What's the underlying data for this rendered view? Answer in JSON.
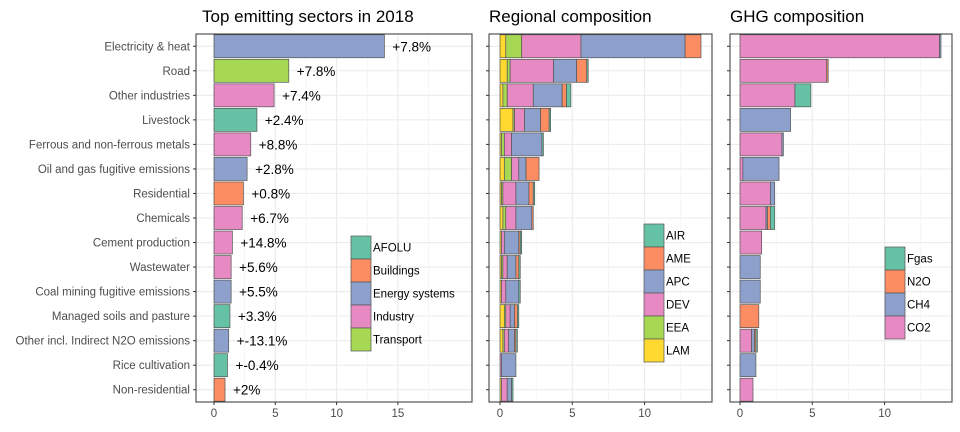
{
  "colors": {
    "AFOLU": "#66c2a5",
    "Buildings": "#fc8d62",
    "Energy systems": "#8da0cb",
    "Industry": "#e78ac3",
    "Transport": "#a6d854",
    "AIR": "#66c2a5",
    "AME": "#fc8d62",
    "APC": "#8da0cb",
    "DEV": "#e78ac3",
    "EEA": "#a6d854",
    "LAM": "#ffd92f",
    "Fgas": "#66c2a5",
    "N2O": "#fc8d62",
    "CH4": "#8da0cb",
    "CO2": "#e78ac3"
  },
  "chart_data": [
    {
      "type": "bar",
      "orientation": "horizontal",
      "title": "Top emitting sectors in 2018",
      "categories": [
        "Electricity & heat",
        "Road",
        "Other industries",
        "Livestock",
        "Ferrous and non-ferrous metals",
        "Oil and gas fugitive emissions",
        "Residential",
        "Chemicals",
        "Cement production",
        "Wastewater",
        "Coal mining fugitive emissions",
        "Managed soils and pasture",
        "Other incl. Indirect N2O emissions",
        "Rice cultivation",
        "Non-residential"
      ],
      "values": [
        13.9,
        6.1,
        4.9,
        3.5,
        3.0,
        2.7,
        2.4,
        2.3,
        1.5,
        1.4,
        1.4,
        1.3,
        1.2,
        1.1,
        0.9
      ],
      "sector_of": [
        "Energy systems",
        "Transport",
        "Industry",
        "AFOLU",
        "Industry",
        "Energy systems",
        "Buildings",
        "Industry",
        "Industry",
        "Industry",
        "Energy systems",
        "AFOLU",
        "Energy systems",
        "AFOLU",
        "Buildings"
      ],
      "data_labels": [
        "+7.8%",
        "+7.8%",
        "+7.4%",
        "+2.4%",
        "+8.8%",
        "+2.8%",
        "+0.8%",
        "+6.7%",
        "+14.8%",
        "+5.6%",
        "+5.5%",
        "+3.3%",
        "+-13.1%",
        "+-0.4%",
        "+2%"
      ],
      "xlim": [
        0,
        17.5
      ],
      "xticks": [
        0,
        5,
        10,
        15
      ],
      "xtick_labels": [
        "0",
        "5",
        "10",
        "15"
      ],
      "legend": {
        "position": "inside-bottom-right",
        "entries": [
          "AFOLU",
          "Buildings",
          "Energy systems",
          "Industry",
          "Transport"
        ]
      },
      "grid": true
    },
    {
      "type": "bar",
      "orientation": "horizontal",
      "stacked": true,
      "title": "Regional composition",
      "categories": [
        "Electricity & heat",
        "Road",
        "Other industries",
        "Livestock",
        "Ferrous and non-ferrous metals",
        "Oil and gas fugitive emissions",
        "Residential",
        "Chemicals",
        "Cement production",
        "Wastewater",
        "Coal mining fugitive emissions",
        "Managed soils and pasture",
        "Other incl. Indirect N2O emissions",
        "Rice cultivation",
        "Non-residential"
      ],
      "series": [
        {
          "name": "LAM",
          "values": [
            0.4,
            0.5,
            0.2,
            0.9,
            0.1,
            0.3,
            0.1,
            0.2,
            0.1,
            0.1,
            0.1,
            0.3,
            0.2,
            0.0,
            0.1
          ]
        },
        {
          "name": "EEA",
          "values": [
            1.1,
            0.2,
            0.3,
            0.1,
            0.2,
            0.5,
            0.1,
            0.2,
            0.0,
            0.1,
            0.0,
            0.1,
            0.1,
            0.0,
            0.0
          ]
        },
        {
          "name": "DEV",
          "values": [
            4.1,
            3.0,
            1.8,
            0.7,
            0.5,
            0.5,
            0.9,
            0.7,
            0.2,
            0.3,
            0.3,
            0.3,
            0.3,
            0.1,
            0.4
          ]
        },
        {
          "name": "APC",
          "values": [
            7.2,
            1.6,
            2.0,
            1.1,
            2.1,
            0.5,
            0.9,
            1.1,
            1.0,
            0.6,
            0.9,
            0.3,
            0.4,
            1.0,
            0.3
          ]
        },
        {
          "name": "AME",
          "values": [
            1.1,
            0.7,
            0.3,
            0.6,
            0.0,
            0.9,
            0.3,
            0.1,
            0.1,
            0.2,
            0.0,
            0.2,
            0.1,
            0.0,
            0.0
          ]
        },
        {
          "name": "AIR",
          "values": [
            0.0,
            0.1,
            0.3,
            0.1,
            0.1,
            0.0,
            0.1,
            0.0,
            0.1,
            0.1,
            0.1,
            0.1,
            0.1,
            0.0,
            0.1
          ]
        }
      ],
      "xlim": [
        0,
        14.5
      ],
      "xticks": [
        0,
        5,
        10
      ],
      "xtick_labels": [
        "0",
        "5",
        "10"
      ],
      "legend": {
        "position": "inside-bottom-right",
        "entries": [
          "AIR",
          "AME",
          "APC",
          "DEV",
          "EEA",
          "LAM"
        ]
      },
      "grid": true
    },
    {
      "type": "bar",
      "orientation": "horizontal",
      "stacked": true,
      "title": "GHG composition",
      "categories": [
        "Electricity & heat",
        "Road",
        "Other industries",
        "Livestock",
        "Ferrous and non-ferrous metals",
        "Oil and gas fugitive emissions",
        "Residential",
        "Chemicals",
        "Cement production",
        "Wastewater",
        "Coal mining fugitive emissions",
        "Managed soils and pasture",
        "Other incl. Indirect N2O emissions",
        "Rice cultivation",
        "Non-residential"
      ],
      "series": [
        {
          "name": "CO2",
          "values": [
            13.8,
            6.0,
            3.8,
            0.0,
            2.9,
            0.2,
            2.1,
            1.8,
            1.5,
            0.0,
            0.0,
            0.0,
            0.8,
            0.0,
            0.9
          ]
        },
        {
          "name": "CH4",
          "values": [
            0.1,
            0.0,
            0.0,
            3.5,
            0.1,
            2.5,
            0.3,
            0.1,
            0.0,
            1.4,
            1.4,
            0.0,
            0.2,
            1.1,
            0.0
          ]
        },
        {
          "name": "N2O",
          "values": [
            0.0,
            0.1,
            0.0,
            0.0,
            0.0,
            0.0,
            0.0,
            0.2,
            0.0,
            0.0,
            0.0,
            1.3,
            0.1,
            0.0,
            0.0
          ]
        },
        {
          "name": "Fgas",
          "values": [
            0.0,
            0.0,
            1.1,
            0.0,
            0.0,
            0.0,
            0.0,
            0.3,
            0.0,
            0.0,
            0.0,
            0.0,
            0.1,
            0.0,
            0.0
          ]
        }
      ],
      "xlim": [
        0,
        14.5
      ],
      "xticks": [
        0,
        5,
        10
      ],
      "xtick_labels": [
        "0",
        "5",
        "10"
      ],
      "legend": {
        "position": "inside-bottom-right",
        "entries": [
          "Fgas",
          "N2O",
          "CH4",
          "CO2"
        ]
      },
      "grid": true
    }
  ]
}
